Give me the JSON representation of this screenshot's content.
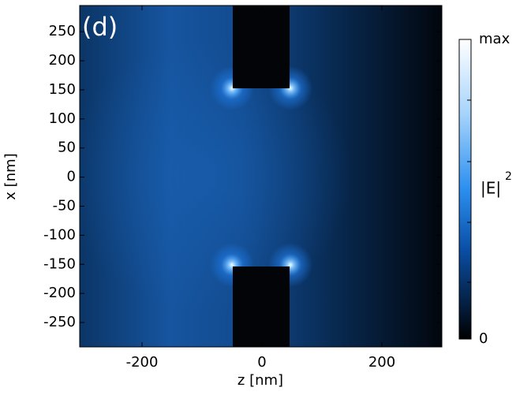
{
  "chart_data": {
    "type": "heatmap",
    "panel_label": "(d)",
    "xlabel": "z [nm]",
    "ylabel": "x [nm]",
    "xlim": [
      -304,
      300
    ],
    "xticks": [
      -200,
      0,
      200
    ],
    "ylim": [
      -292,
      295
    ],
    "yticks": [
      -250,
      -200,
      -150,
      -100,
      -50,
      0,
      50,
      100,
      150,
      200,
      250
    ],
    "colorbar": {
      "label": "|E|",
      "label_superscript": "2",
      "min_label": "0",
      "max_label": "max"
    }
  }
}
